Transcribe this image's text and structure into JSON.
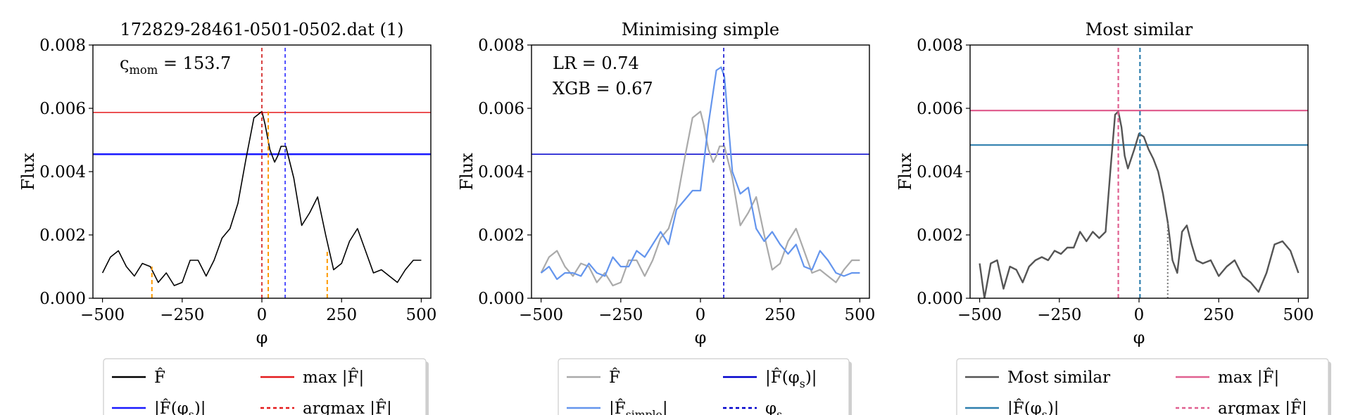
{
  "figure": {
    "panels": [
      {
        "title": "172829-28461-0501-0502.dat (1)",
        "annotations": [
          {
            "text": "ς",
            "sub": "mom",
            "rest": " = 153.7"
          }
        ],
        "legend": [
          {
            "label": "F̂",
            "color": "#000000",
            "dash": ""
          },
          {
            "label": "max |F̂|",
            "color": "#e41a1c",
            "dash": ""
          },
          {
            "label": "|F̂(φ",
            "sub": "s",
            "rest": ")|",
            "color": "#1a1aff",
            "dash": ""
          },
          {
            "label": "argmax |F̂|",
            "color": "#e41a1c",
            "dash": "5,4"
          }
        ]
      },
      {
        "title": "Minimising simple",
        "annotations": [
          {
            "text": "LR = 0.74"
          },
          {
            "text": "XGB = 0.67"
          }
        ],
        "legend": [
          {
            "label": "F̂",
            "color": "#aaaaaa",
            "dash": ""
          },
          {
            "label": "|F̂(φ",
            "sub": "s",
            "rest": ")|",
            "color": "#0000cc",
            "dash": ""
          },
          {
            "label": "|F̂",
            "sub": "simple",
            "rest": "|",
            "color": "#6495ed",
            "dash": ""
          },
          {
            "label": "φ",
            "sub": "s",
            "rest": "",
            "color": "#0000cc",
            "dash": "5,4"
          }
        ]
      },
      {
        "title": "Most similar",
        "annotations": [],
        "legend": [
          {
            "label": "Most similar",
            "color": "#555555",
            "dash": ""
          },
          {
            "label": "max |F̂|",
            "color": "#e06090",
            "dash": ""
          },
          {
            "label": "|F̂(φ",
            "sub": "s",
            "rest": ")|",
            "color": "#2e7fae",
            "dash": ""
          },
          {
            "label": "argmax |F̂|",
            "color": "#e06090",
            "dash": "5,4"
          }
        ]
      }
    ],
    "ylabel": "Flux",
    "xlabel": "φ"
  },
  "chart_data": [
    {
      "type": "line",
      "title": "172829-28461-0501-0502.dat (1)",
      "xlabel": "φ",
      "ylabel": "Flux",
      "xlim": [
        -530,
        530
      ],
      "ylim": [
        0,
        0.008
      ],
      "xticks": [
        -500,
        -250,
        0,
        250,
        500
      ],
      "xtick_labels": [
        "−500",
        "−250",
        "0",
        "250",
        "500"
      ],
      "yticks": [
        0,
        0.002,
        0.004,
        0.006,
        0.008
      ],
      "ytick_labels": [
        "0.000",
        "0.002",
        "0.004",
        "0.006",
        "0.008"
      ],
      "series": [
        {
          "name": "F̂",
          "color": "#000000",
          "width": 1.6,
          "x": [
            -500,
            -475,
            -450,
            -425,
            -400,
            -375,
            -350,
            -325,
            -300,
            -275,
            -250,
            -225,
            -200,
            -175,
            -150,
            -125,
            -100,
            -75,
            -50,
            -25,
            0,
            10,
            25,
            40,
            50,
            60,
            75,
            100,
            125,
            150,
            175,
            200,
            225,
            250,
            275,
            300,
            325,
            350,
            375,
            400,
            425,
            450,
            475,
            500
          ],
          "y": [
            0.0008,
            0.0013,
            0.0015,
            0.001,
            0.0007,
            0.0011,
            0.001,
            0.0005,
            0.0008,
            0.0004,
            0.0005,
            0.0012,
            0.0012,
            0.0007,
            0.0012,
            0.0019,
            0.0022,
            0.003,
            0.0044,
            0.0057,
            0.0059,
            0.0055,
            0.0047,
            0.0043,
            0.0045,
            0.0048,
            0.0048,
            0.0038,
            0.0023,
            0.0027,
            0.0032,
            0.002,
            0.0009,
            0.0011,
            0.0018,
            0.0022,
            0.0015,
            0.0008,
            0.0009,
            0.0007,
            0.0005,
            0.0009,
            0.0012,
            0.0012
          ]
        }
      ],
      "hlines": [
        {
          "y": 0.00587,
          "color": "#e41a1c",
          "width": 1.5,
          "dash": ""
        },
        {
          "y": 0.00455,
          "color": "#1a1aff",
          "width": 2.5,
          "dash": ""
        }
      ],
      "vlines": [
        {
          "x": 0,
          "y0": 0,
          "y1": 0.008,
          "color": "#cc0000",
          "width": 1.5,
          "dash": "5,4"
        },
        {
          "x": 73,
          "y0": 0,
          "y1": 0.008,
          "color": "#1a1aff",
          "width": 1.5,
          "dash": "5,4"
        },
        {
          "x": 20,
          "y0": 0,
          "y1": 0.0059,
          "color": "#ff9900",
          "width": 2,
          "dash": "6,4"
        },
        {
          "x": -345,
          "y0": 0,
          "y1": 0.001,
          "color": "#ff9900",
          "width": 2,
          "dash": "6,4"
        },
        {
          "x": 205,
          "y0": 0,
          "y1": 0.0015,
          "color": "#ff9900",
          "width": 2,
          "dash": "6,4"
        }
      ],
      "legend": "below"
    },
    {
      "type": "line",
      "title": "Minimising simple",
      "xlabel": "φ",
      "ylabel": "Flux",
      "xlim": [
        -530,
        530
      ],
      "ylim": [
        0,
        0.008
      ],
      "xticks": [
        -500,
        -250,
        0,
        250,
        500
      ],
      "xtick_labels": [
        "−500",
        "−250",
        "0",
        "250",
        "500"
      ],
      "yticks": [
        0,
        0.002,
        0.004,
        0.006,
        0.008
      ],
      "ytick_labels": [
        "0.000",
        "0.002",
        "0.004",
        "0.006",
        "0.008"
      ],
      "series": [
        {
          "name": "F̂",
          "color": "#aaaaaa",
          "width": 2.2,
          "x": [
            -500,
            -475,
            -450,
            -425,
            -400,
            -375,
            -350,
            -325,
            -300,
            -275,
            -250,
            -225,
            -200,
            -175,
            -150,
            -125,
            -100,
            -75,
            -50,
            -25,
            0,
            10,
            25,
            40,
            50,
            60,
            75,
            100,
            125,
            150,
            175,
            200,
            225,
            250,
            275,
            300,
            325,
            350,
            375,
            400,
            425,
            450,
            475,
            500
          ],
          "y": [
            0.0008,
            0.0013,
            0.0015,
            0.001,
            0.0007,
            0.0011,
            0.001,
            0.0005,
            0.0008,
            0.0004,
            0.0005,
            0.0012,
            0.0012,
            0.0007,
            0.0012,
            0.0019,
            0.0022,
            0.003,
            0.0044,
            0.0057,
            0.0059,
            0.0055,
            0.0047,
            0.0043,
            0.0045,
            0.0048,
            0.0048,
            0.0038,
            0.0023,
            0.0027,
            0.0032,
            0.002,
            0.0009,
            0.0011,
            0.0018,
            0.0022,
            0.0015,
            0.0008,
            0.0009,
            0.0007,
            0.0005,
            0.0009,
            0.0012,
            0.0012
          ]
        },
        {
          "name": "|F̂simple|",
          "color": "#6495ed",
          "width": 2.2,
          "x": [
            -500,
            -475,
            -450,
            -425,
            -400,
            -375,
            -350,
            -325,
            -300,
            -275,
            -250,
            -225,
            -200,
            -175,
            -150,
            -125,
            -100,
            -75,
            -50,
            -25,
            0,
            25,
            50,
            65,
            75,
            100,
            125,
            150,
            175,
            200,
            225,
            250,
            275,
            300,
            325,
            350,
            375,
            400,
            425,
            450,
            475,
            500
          ],
          "y": [
            0.0008,
            0.001,
            0.0006,
            0.0008,
            0.0008,
            0.0007,
            0.0011,
            0.0008,
            0.0007,
            0.0013,
            0.001,
            0.001,
            0.0015,
            0.0013,
            0.0017,
            0.0021,
            0.0017,
            0.0028,
            0.0031,
            0.0034,
            0.0034,
            0.0055,
            0.0072,
            0.0073,
            0.007,
            0.004,
            0.0033,
            0.0035,
            0.0022,
            0.0018,
            0.0021,
            0.0017,
            0.0014,
            0.0017,
            0.001,
            0.0009,
            0.0015,
            0.0012,
            0.0008,
            0.0007,
            0.0008,
            0.0008
          ]
        }
      ],
      "hlines": [
        {
          "y": 0.00455,
          "color": "#0000cc",
          "width": 1.5,
          "dash": ""
        }
      ],
      "vlines": [
        {
          "x": 73,
          "y0": 0,
          "y1": 0.008,
          "color": "#0000cc",
          "width": 1.5,
          "dash": "5,4"
        }
      ],
      "legend": "below"
    },
    {
      "type": "line",
      "title": "Most similar",
      "xlabel": "φ",
      "ylabel": "Flux",
      "xlim": [
        -530,
        530
      ],
      "ylim": [
        0,
        0.008
      ],
      "xticks": [
        -500,
        -250,
        0,
        250,
        500
      ],
      "xtick_labels": [
        "−500",
        "−250",
        "0",
        "250",
        "500"
      ],
      "yticks": [
        0,
        0.002,
        0.004,
        0.006,
        0.008
      ],
      "ytick_labels": [
        "0.000",
        "0.002",
        "0.004",
        "0.006",
        "0.008"
      ],
      "series": [
        {
          "name": "Most similar",
          "color": "#555555",
          "width": 2.4,
          "x": [
            -500,
            -485,
            -465,
            -445,
            -425,
            -405,
            -385,
            -365,
            -345,
            -325,
            -305,
            -285,
            -265,
            -245,
            -225,
            -205,
            -185,
            -165,
            -145,
            -125,
            -105,
            -90,
            -75,
            -65,
            -55,
            -45,
            -35,
            -25,
            -15,
            0,
            15,
            30,
            45,
            60,
            75,
            90,
            105,
            120,
            135,
            150,
            165,
            180,
            200,
            225,
            250,
            275,
            300,
            325,
            350,
            375,
            400,
            425,
            450,
            475,
            500
          ],
          "y": [
            0.0011,
            0.0,
            0.0011,
            0.0012,
            0.0003,
            0.001,
            0.0009,
            0.0005,
            0.001,
            0.0012,
            0.0013,
            0.0012,
            0.0015,
            0.0014,
            0.0016,
            0.0016,
            0.0021,
            0.0018,
            0.0021,
            0.0019,
            0.0021,
            0.004,
            0.0058,
            0.0059,
            0.0054,
            0.0045,
            0.0041,
            0.0044,
            0.0047,
            0.0052,
            0.0051,
            0.0047,
            0.0044,
            0.004,
            0.0033,
            0.0024,
            0.0012,
            0.0008,
            0.0021,
            0.0023,
            0.0017,
            0.0012,
            0.0011,
            0.0012,
            0.0007,
            0.001,
            0.0012,
            0.0007,
            0.0005,
            0.0002,
            0.0008,
            0.0017,
            0.0018,
            0.0015,
            0.0008
          ]
        }
      ],
      "hlines": [
        {
          "y": 0.00593,
          "color": "#e06090",
          "width": 2.2,
          "dash": ""
        },
        {
          "y": 0.00484,
          "color": "#2e7fae",
          "width": 2.2,
          "dash": ""
        }
      ],
      "vlines": [
        {
          "x": -65,
          "y0": 0,
          "y1": 0.008,
          "color": "#e06090",
          "width": 2.2,
          "dash": "6,4"
        },
        {
          "x": 3,
          "y0": 0,
          "y1": 0.008,
          "color": "#2e7fae",
          "width": 2.2,
          "dash": "6,4"
        },
        {
          "x": 90,
          "y0": 0,
          "y1": 0.0024,
          "color": "#777777",
          "width": 2,
          "dash": "2,3"
        }
      ],
      "legend": "below"
    }
  ]
}
